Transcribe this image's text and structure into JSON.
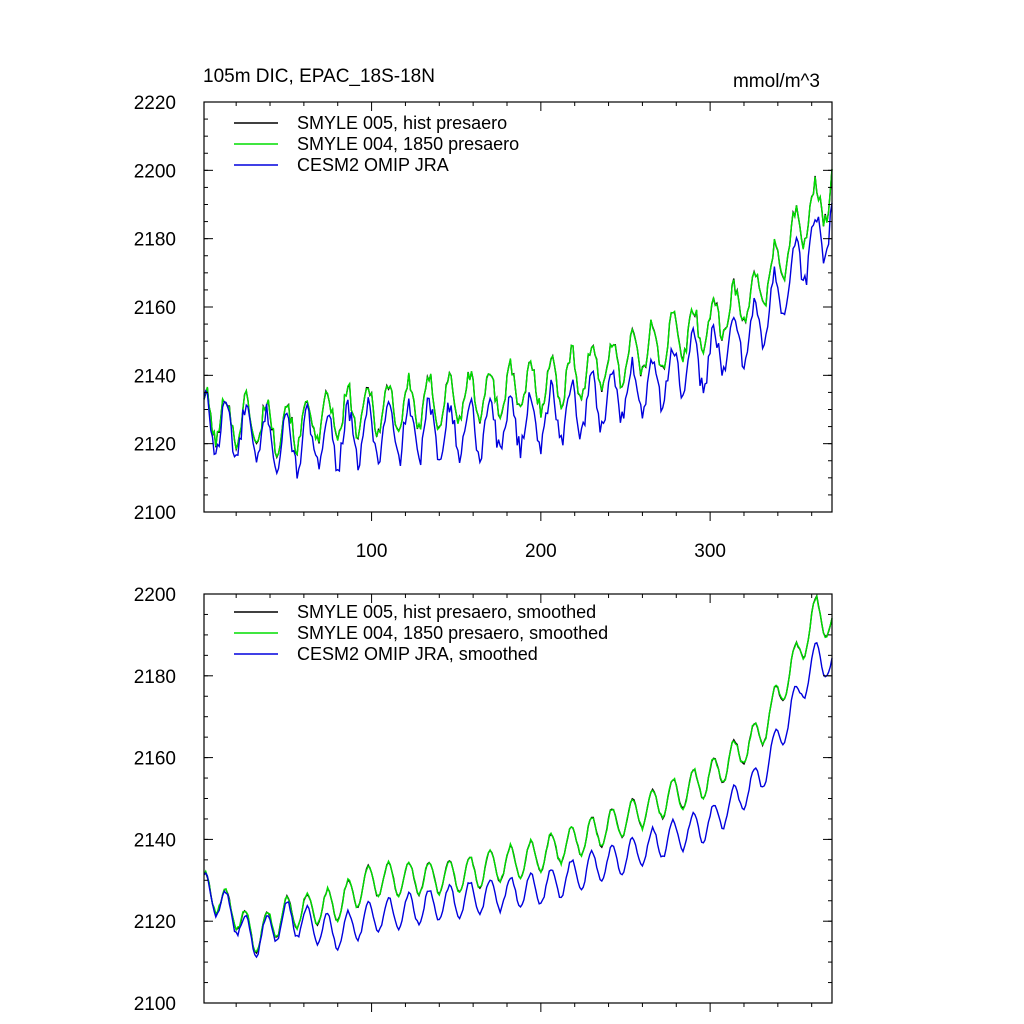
{
  "colors": {
    "hist": "#000000",
    "p1850": "#00dd00",
    "omip": "#0000dd",
    "axis": "#000000",
    "background": "#ffffff"
  },
  "chart_data": [
    {
      "type": "line",
      "title": "105m DIC, EPAC_18S-18N",
      "units": "mmol/m^3",
      "xlabel": "",
      "ylabel": "",
      "xlim": [
        1,
        372
      ],
      "ylim": [
        2100,
        2220
      ],
      "xticks": [
        100,
        200,
        300
      ],
      "yticks": [
        2100,
        2120,
        2140,
        2160,
        2180,
        2200,
        2220
      ],
      "grid": false,
      "legend_position": "top-left",
      "smooth": false,
      "series": [
        {
          "name": "SMYLE 005, hist presaero",
          "color": "#000000",
          "trend": [
            [
              1,
              2128
            ],
            [
              50,
              2125
            ],
            [
              100,
              2130
            ],
            [
              150,
              2133
            ],
            [
              200,
              2137
            ],
            [
              250,
              2145
            ],
            [
              300,
              2155
            ],
            [
              330,
              2165
            ],
            [
              355,
              2185
            ],
            [
              372,
              2195
            ]
          ],
          "seasonal_amplitude": 7,
          "period": 12,
          "noise": 2.5
        },
        {
          "name": "SMYLE 004, 1850 presaero",
          "color": "#00dd00",
          "trend": [
            [
              1,
              2128
            ],
            [
              50,
              2125
            ],
            [
              100,
              2130
            ],
            [
              150,
              2133
            ],
            [
              200,
              2137
            ],
            [
              250,
              2145
            ],
            [
              300,
              2155
            ],
            [
              330,
              2165
            ],
            [
              355,
              2185
            ],
            [
              372,
              2195
            ]
          ],
          "seasonal_amplitude": 7,
          "period": 12,
          "noise": 2.5
        },
        {
          "name": "CESM2 OMIP JRA",
          "color": "#0000dd",
          "trend": [
            [
              1,
              2126
            ],
            [
              50,
              2120
            ],
            [
              100,
              2123
            ],
            [
              150,
              2124
            ],
            [
              200,
              2127
            ],
            [
              250,
              2135
            ],
            [
              300,
              2145
            ],
            [
              330,
              2155
            ],
            [
              355,
              2175
            ],
            [
              372,
              2185
            ]
          ],
          "seasonal_amplitude": 8,
          "period": 12,
          "noise": 3
        }
      ]
    },
    {
      "type": "line",
      "title": "",
      "units": "",
      "xlabel": "",
      "ylabel": "",
      "xlim": [
        1,
        372
      ],
      "ylim": [
        2100,
        2200
      ],
      "xticks": [
        100,
        200,
        300
      ],
      "yticks": [
        2100,
        2120,
        2140,
        2160,
        2180,
        2200
      ],
      "grid": false,
      "legend_position": "top-left",
      "smooth": true,
      "series": [
        {
          "name": "SMYLE 005, hist presaero, smoothed",
          "color": "#000000",
          "trend": [
            [
              1,
              2128
            ],
            [
              20,
              2122
            ],
            [
              30,
              2116
            ],
            [
              50,
              2122
            ],
            [
              80,
              2124
            ],
            [
              100,
              2130
            ],
            [
              150,
              2131
            ],
            [
              200,
              2136
            ],
            [
              250,
              2145
            ],
            [
              300,
              2155
            ],
            [
              330,
              2166
            ],
            [
              355,
              2188
            ],
            [
              363,
              2196
            ],
            [
              372,
              2192
            ]
          ],
          "seasonal_amplitude": 4,
          "period": 12,
          "noise": 0.4
        },
        {
          "name": "SMYLE 004, 1850 presaero, smoothed",
          "color": "#00dd00",
          "trend": [
            [
              1,
              2128
            ],
            [
              20,
              2122
            ],
            [
              30,
              2116
            ],
            [
              50,
              2122
            ],
            [
              80,
              2124
            ],
            [
              100,
              2130
            ],
            [
              150,
              2131
            ],
            [
              200,
              2136
            ],
            [
              250,
              2145
            ],
            [
              300,
              2155
            ],
            [
              330,
              2166
            ],
            [
              355,
              2188
            ],
            [
              363,
              2196
            ],
            [
              372,
              2192
            ]
          ],
          "seasonal_amplitude": 4,
          "period": 12,
          "noise": 0.4
        },
        {
          "name": "CESM2 OMIP JRA, smoothed",
          "color": "#0000dd",
          "trend": [
            [
              1,
              2128
            ],
            [
              20,
              2121
            ],
            [
              30,
              2115
            ],
            [
              50,
              2121
            ],
            [
              80,
              2117
            ],
            [
              100,
              2121
            ],
            [
              150,
              2125
            ],
            [
              200,
              2128
            ],
            [
              250,
              2136
            ],
            [
              300,
              2144
            ],
            [
              330,
              2155
            ],
            [
              355,
              2178
            ],
            [
              363,
              2185
            ],
            [
              372,
              2182
            ]
          ],
          "seasonal_amplitude": 4,
          "period": 12,
          "noise": 0.5
        }
      ]
    }
  ]
}
